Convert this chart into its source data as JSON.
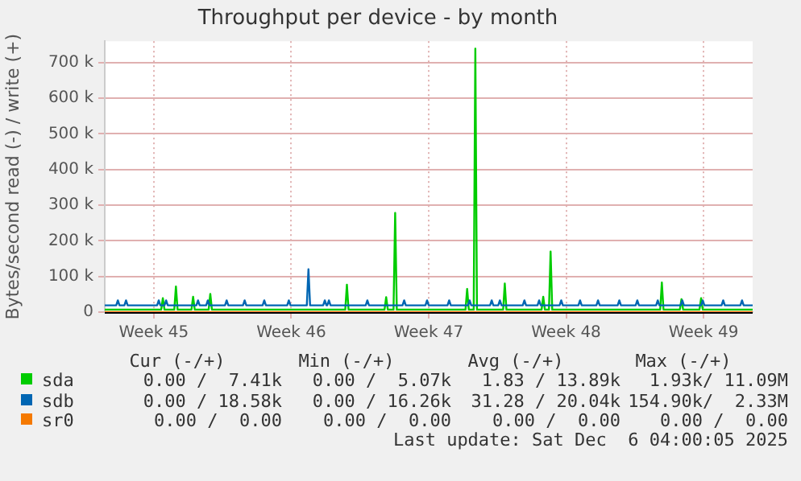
{
  "chart_data": {
    "type": "line",
    "title": "Throughput per device - by month",
    "ylabel": "Bytes/second read (-) / write (+)",
    "xlim": [
      "2025-11-03T00:00",
      "2025-12-06T00:00"
    ],
    "xticks": [
      {
        "value": "2025-11-05T12:00",
        "label": "Week 45"
      },
      {
        "value": "2025-11-12T12:00",
        "label": "Week 46"
      },
      {
        "value": "2025-11-19T12:00",
        "label": "Week 47"
      },
      {
        "value": "2025-11-26T12:00",
        "label": "Week 48"
      },
      {
        "value": "2025-12-03T12:00",
        "label": "Week 49"
      }
    ],
    "ylim": [
      0,
      760000
    ],
    "yticks": [
      {
        "value": 0,
        "label": "0"
      },
      {
        "value": 100000,
        "label": "100 k"
      },
      {
        "value": 200000,
        "label": "200 k"
      },
      {
        "value": 300000,
        "label": "300 k"
      },
      {
        "value": 400000,
        "label": "400 k"
      },
      {
        "value": 500000,
        "label": "500 k"
      },
      {
        "value": 600000,
        "label": "600 k"
      },
      {
        "value": 700000,
        "label": "700 k"
      }
    ],
    "grid": true,
    "legend": "bottom",
    "marker": "none",
    "series": [
      {
        "name": "sr0",
        "color": "#f57900",
        "x": [
          "2025-11-03T00:00",
          "2025-12-06T00:00"
        ],
        "values": [
          0,
          0
        ]
      },
      {
        "name": "sdb",
        "color": "#0066b3",
        "x": [
          "2025-11-03T00:00",
          "2025-11-03T14:00",
          "2025-11-03T16:00",
          "2025-11-03T18:00",
          "2025-11-04T00:00",
          "2025-11-04T02:00",
          "2025-11-04T04:00",
          "2025-11-05T16:00",
          "2025-11-05T18:00",
          "2025-11-05T20:00",
          "2025-11-06T01:00",
          "2025-11-06T03:00",
          "2025-11-06T05:00",
          "2025-11-07T16:00",
          "2025-11-07T18:00",
          "2025-11-07T20:00",
          "2025-11-08T04:00",
          "2025-11-08T06:00",
          "2025-11-08T08:00",
          "2025-11-09T03:00",
          "2025-11-09T05:00",
          "2025-11-09T07:00",
          "2025-11-10T01:00",
          "2025-11-10T03:00",
          "2025-11-10T05:00",
          "2025-11-11T01:00",
          "2025-11-11T03:00",
          "2025-11-11T05:00",
          "2025-11-12T07:00",
          "2025-11-12T09:00",
          "2025-11-12T11:00",
          "2025-11-13T07:00",
          "2025-11-13T09:00",
          "2025-11-13T11:00",
          "2025-11-14T03:00",
          "2025-11-14T05:00",
          "2025-11-14T07:00",
          "2025-11-14T08:00",
          "2025-11-14T10:00",
          "2025-11-14T12:00",
          "2025-11-16T07:00",
          "2025-11-16T09:00",
          "2025-11-16T11:00",
          "2025-11-18T04:00",
          "2025-11-18T06:00",
          "2025-11-18T08:00",
          "2025-11-19T08:00",
          "2025-11-19T10:00",
          "2025-11-19T12:00",
          "2025-11-20T11:00",
          "2025-11-20T13:00",
          "2025-11-20T15:00",
          "2025-11-21T12:00",
          "2025-11-21T14:00",
          "2025-11-21T16:00",
          "2025-11-22T15:00",
          "2025-11-22T17:00",
          "2025-11-22T19:00",
          "2025-11-23T01:00",
          "2025-11-23T03:00",
          "2025-11-23T05:00",
          "2025-11-24T07:00",
          "2025-11-24T09:00",
          "2025-11-24T11:00",
          "2025-11-25T01:00",
          "2025-11-25T03:00",
          "2025-11-25T05:00",
          "2025-11-26T04:00",
          "2025-11-26T06:00",
          "2025-11-26T08:00",
          "2025-11-27T03:00",
          "2025-11-27T05:00",
          "2025-11-27T07:00",
          "2025-11-28T01:00",
          "2025-11-28T03:00",
          "2025-11-28T05:00",
          "2025-11-29T03:00",
          "2025-11-29T05:00",
          "2025-11-29T07:00",
          "2025-11-30T01:00",
          "2025-11-30T03:00",
          "2025-11-30T05:00",
          "2025-12-01T02:00",
          "2025-12-01T04:00",
          "2025-12-01T06:00",
          "2025-12-02T08:00",
          "2025-12-02T10:00",
          "2025-12-02T12:00",
          "2025-12-03T09:00",
          "2025-12-03T11:00",
          "2025-12-03T13:00",
          "2025-12-04T10:00",
          "2025-12-04T12:00",
          "2025-12-04T14:00",
          "2025-12-05T09:00",
          "2025-12-05T11:00",
          "2025-12-05T13:00",
          "2025-12-06T00:00"
        ],
        "values": [
          19000,
          19000,
          33000,
          19000,
          19000,
          33000,
          19000,
          19000,
          33000,
          19000,
          19000,
          33000,
          19000,
          19000,
          33000,
          19000,
          19000,
          33000,
          19000,
          19000,
          33000,
          19000,
          19000,
          33000,
          19000,
          19000,
          33000,
          19000,
          19000,
          33000,
          19000,
          19000,
          120000,
          19000,
          19000,
          33000,
          19000,
          19000,
          33000,
          19000,
          19000,
          33000,
          19000,
          19000,
          33000,
          19000,
          19000,
          33000,
          19000,
          19000,
          33000,
          19000,
          19000,
          33000,
          19000,
          19000,
          33000,
          19000,
          19000,
          33000,
          19000,
          19000,
          33000,
          19000,
          19000,
          33000,
          19000,
          19000,
          33000,
          19000,
          19000,
          33000,
          19000,
          19000,
          33000,
          19000,
          19000,
          33000,
          19000,
          19000,
          33000,
          19000,
          19000,
          33000,
          19000,
          19000,
          33000,
          19000,
          19000,
          33000,
          19000,
          19000,
          33000,
          19000,
          19000,
          33000,
          19000,
          19000
        ]
      },
      {
        "name": "sda",
        "color": "#00cc00",
        "x": [
          "2025-11-03T00:00",
          "2025-11-05T21:00",
          "2025-11-05T23:00",
          "2025-11-06T01:00",
          "2025-11-06T13:00",
          "2025-11-06T15:00",
          "2025-11-06T17:00",
          "2025-11-07T10:00",
          "2025-11-07T12:00",
          "2025-11-07T14:00",
          "2025-11-08T07:00",
          "2025-11-08T09:00",
          "2025-11-08T11:00",
          "2025-11-15T06:00",
          "2025-11-15T08:00",
          "2025-11-15T10:00",
          "2025-11-17T06:00",
          "2025-11-17T08:00",
          "2025-11-17T10:00",
          "2025-11-17T17:00",
          "2025-11-17T19:00",
          "2025-11-17T21:00",
          "2025-11-21T09:00",
          "2025-11-21T11:00",
          "2025-11-21T13:00",
          "2025-11-21T19:00",
          "2025-11-21T21:00",
          "2025-11-21T23:00",
          "2025-11-23T07:00",
          "2025-11-23T09:00",
          "2025-11-23T11:00",
          "2025-11-25T06:00",
          "2025-11-25T08:00",
          "2025-11-25T10:00",
          "2025-11-25T15:00",
          "2025-11-25T17:00",
          "2025-11-25T19:00",
          "2025-12-01T07:00",
          "2025-12-01T09:00",
          "2025-12-01T11:00",
          "2025-12-02T07:00",
          "2025-12-02T09:00",
          "2025-12-02T11:00",
          "2025-12-03T07:00",
          "2025-12-03T09:00",
          "2025-12-03T11:00",
          "2025-12-06T00:00"
        ],
        "values": [
          7000,
          7000,
          39000,
          7000,
          7000,
          72000,
          7000,
          7000,
          43000,
          7000,
          7000,
          51000,
          7000,
          7000,
          77000,
          7000,
          7000,
          42000,
          7000,
          7000,
          278000,
          7000,
          7000,
          65000,
          7000,
          7000,
          739000,
          7000,
          7000,
          80000,
          7000,
          7000,
          43000,
          7000,
          7000,
          170000,
          7000,
          7000,
          83000,
          7000,
          7000,
          36000,
          7000,
          7000,
          39000,
          7000,
          7000
        ]
      }
    ],
    "annotations": [
      "Cur (-/+)",
      "Min (-/+)",
      "Avg (-/+)",
      "Max (-/+)",
      "0.00 /  7.41k",
      "0.00 /  5.07k",
      "1.83 / 13.89k",
      "1.93k/ 11.09M",
      "0.00 / 18.58k",
      "0.00 / 16.26k",
      "31.28 / 20.04k",
      "154.90k/  2.33M",
      "0.00 /  0.00",
      "0.00 /  0.00",
      "0.00 /  0.00",
      "0.00 /  0.00",
      "Last update: Sat Dec  6 04:00:05 2025"
    ]
  }
}
